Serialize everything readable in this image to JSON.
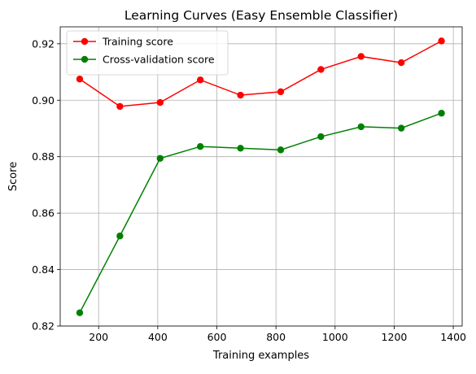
{
  "chart_data": {
    "type": "line",
    "title": "Learning Curves (Easy Ensemble Classifier)",
    "xlabel": "Training examples",
    "ylabel": "Score",
    "xlim": [
      70,
      1430
    ],
    "ylim": [
      0.82,
      0.926
    ],
    "xticks": [
      200,
      400,
      600,
      800,
      1000,
      1200,
      1400
    ],
    "xtick_labels": [
      "200",
      "400",
      "600",
      "800",
      "1000",
      "1200",
      "1400"
    ],
    "yticks": [
      0.82,
      0.84,
      0.86,
      0.88,
      0.9,
      0.92
    ],
    "ytick_labels": [
      "0.82",
      "0.84",
      "0.86",
      "0.88",
      "0.90",
      "0.92"
    ],
    "grid": true,
    "legend_position": "top-left",
    "x": [
      136,
      272,
      408,
      544,
      680,
      816,
      952,
      1088,
      1224,
      1360
    ],
    "series": [
      {
        "name": "Training score",
        "color": "#ff0000",
        "marker": "circle",
        "values": [
          0.9075,
          0.8978,
          0.8992,
          0.9072,
          0.9018,
          0.903,
          0.9109,
          0.9155,
          0.9133,
          0.921
        ]
      },
      {
        "name": "Cross-validation score",
        "color": "#008000",
        "marker": "circle",
        "values": [
          0.8247,
          0.8519,
          0.8794,
          0.8836,
          0.883,
          0.8824,
          0.8871,
          0.8906,
          0.8901,
          0.8954
        ]
      }
    ]
  }
}
